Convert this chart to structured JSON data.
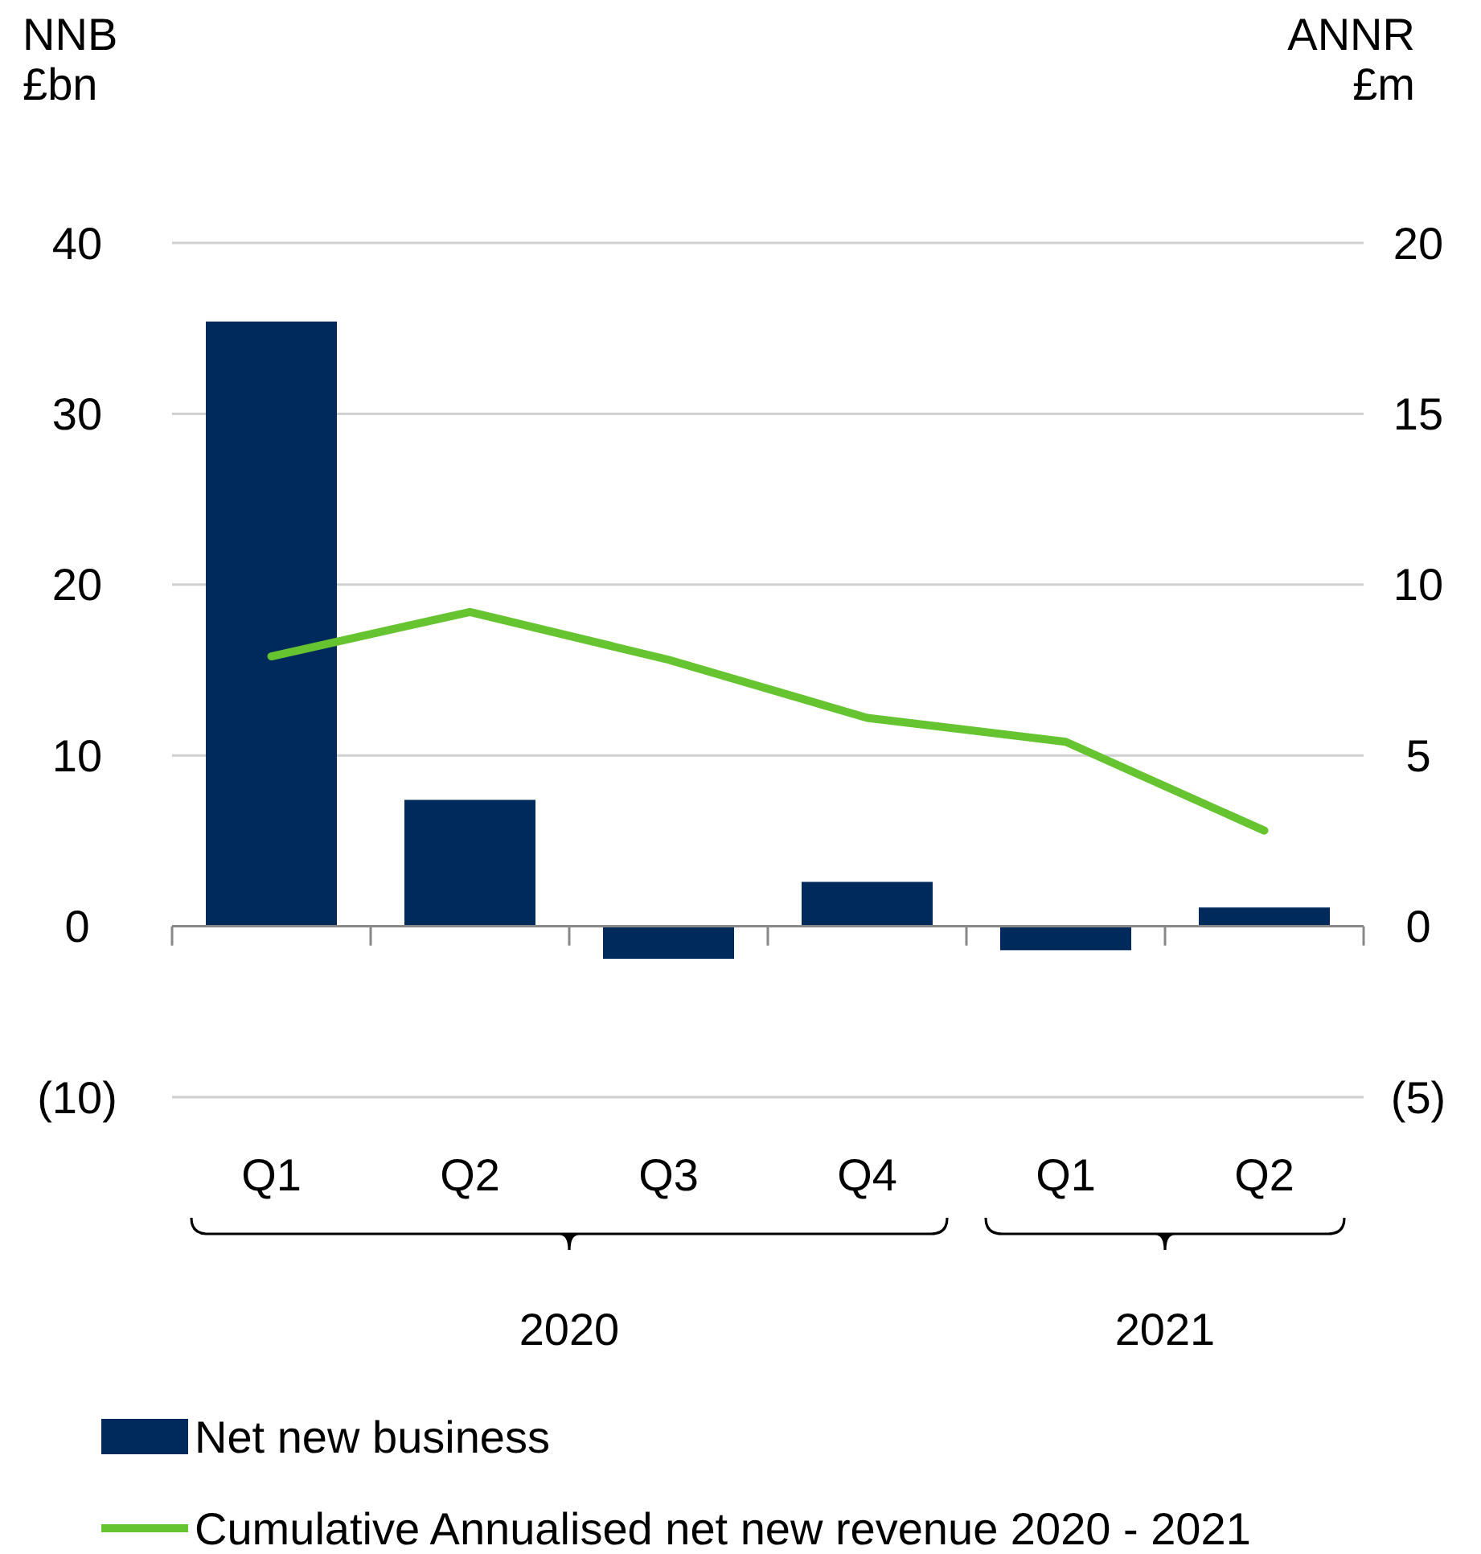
{
  "chart_data": {
    "type": "bar",
    "ylabel": "NNB\n£bn",
    "y2label": "ANNR\n£m",
    "categories": [
      "Q1",
      "Q2",
      "Q3",
      "Q4",
      "Q1",
      "Q2"
    ],
    "series": [
      {
        "name": "Net new business",
        "color": "#002a5c",
        "values": [
          35.4,
          7.4,
          -1.9,
          2.6,
          -1.4,
          1.1
        ]
      },
      {
        "name": "Cumulative Annualised net new revenue 2020 - 2021",
        "type": "line",
        "axis": "y2",
        "color": "#66c430",
        "values": [
          7.9,
          9.2,
          7.8,
          6.1,
          5.4,
          2.8
        ]
      }
    ],
    "ylim": [
      -10,
      40
    ],
    "yticks": [
      {
        "value": -10,
        "label": "(10)"
      },
      0,
      10,
      20,
      30,
      40
    ],
    "y2lim": [
      -5,
      20
    ],
    "y2ticks": [
      {
        "value": -5,
        "label": "(5)"
      },
      0,
      5,
      10,
      15,
      20
    ],
    "annotations": [
      "2020",
      "2021"
    ],
    "grid": "y",
    "legend": "bottom",
    "marker": "none",
    "line_style": "solid"
  }
}
